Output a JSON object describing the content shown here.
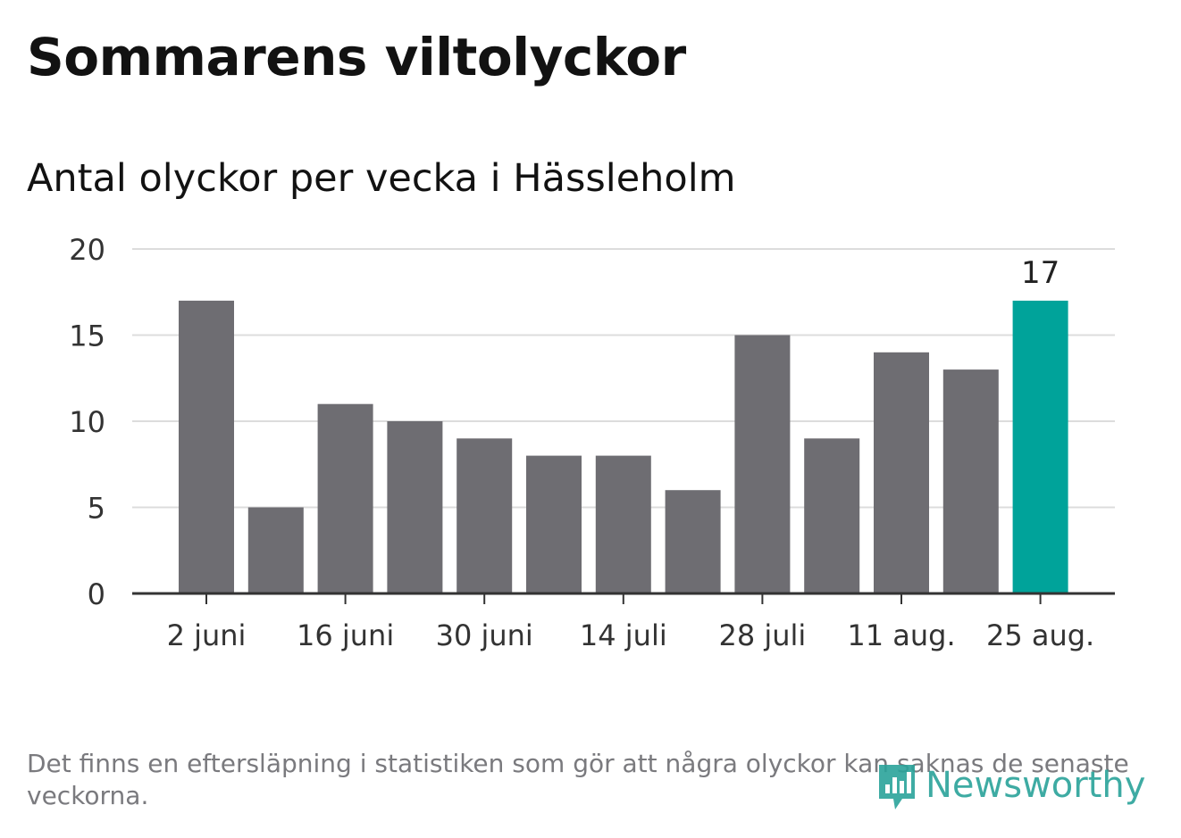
{
  "title": "Sommarens viltolyckor",
  "footnote": "Det finns en eftersläpning i statistiken som gör att några olyckor kan saknas de senaste veckorna.",
  "brand": {
    "name": "Newsworthy",
    "icon": "newsworthy-logo-icon",
    "color": "#2aa39a"
  },
  "colors": {
    "bar": "#6e6d72",
    "highlight": "#00a39a",
    "grid": "#dcdcdc",
    "axis": "#333333",
    "text": "#333333"
  },
  "chart_data": {
    "type": "bar",
    "title": "Antal olyckor per vecka i Hässleholm",
    "xlabel": "",
    "ylabel": "",
    "ylim": [
      0,
      20
    ],
    "yticks": [
      0,
      5,
      10,
      15,
      20
    ],
    "categories": [
      "2 juni",
      "9 juni",
      "16 juni",
      "23 juni",
      "30 juni",
      "7 juli",
      "14 juli",
      "21 juli",
      "28 juli",
      "4 aug.",
      "11 aug.",
      "18 aug.",
      "25 aug."
    ],
    "tick_labels": [
      "2 juni",
      "16 juni",
      "30 juni",
      "14 juli",
      "28 juli",
      "11 aug.",
      "25 aug."
    ],
    "values": [
      17,
      5,
      11,
      10,
      9,
      8,
      8,
      6,
      15,
      9,
      14,
      13,
      17
    ],
    "highlight_index": 12,
    "data_labels": [
      {
        "index": 12,
        "text": "17"
      }
    ],
    "grid": true
  }
}
